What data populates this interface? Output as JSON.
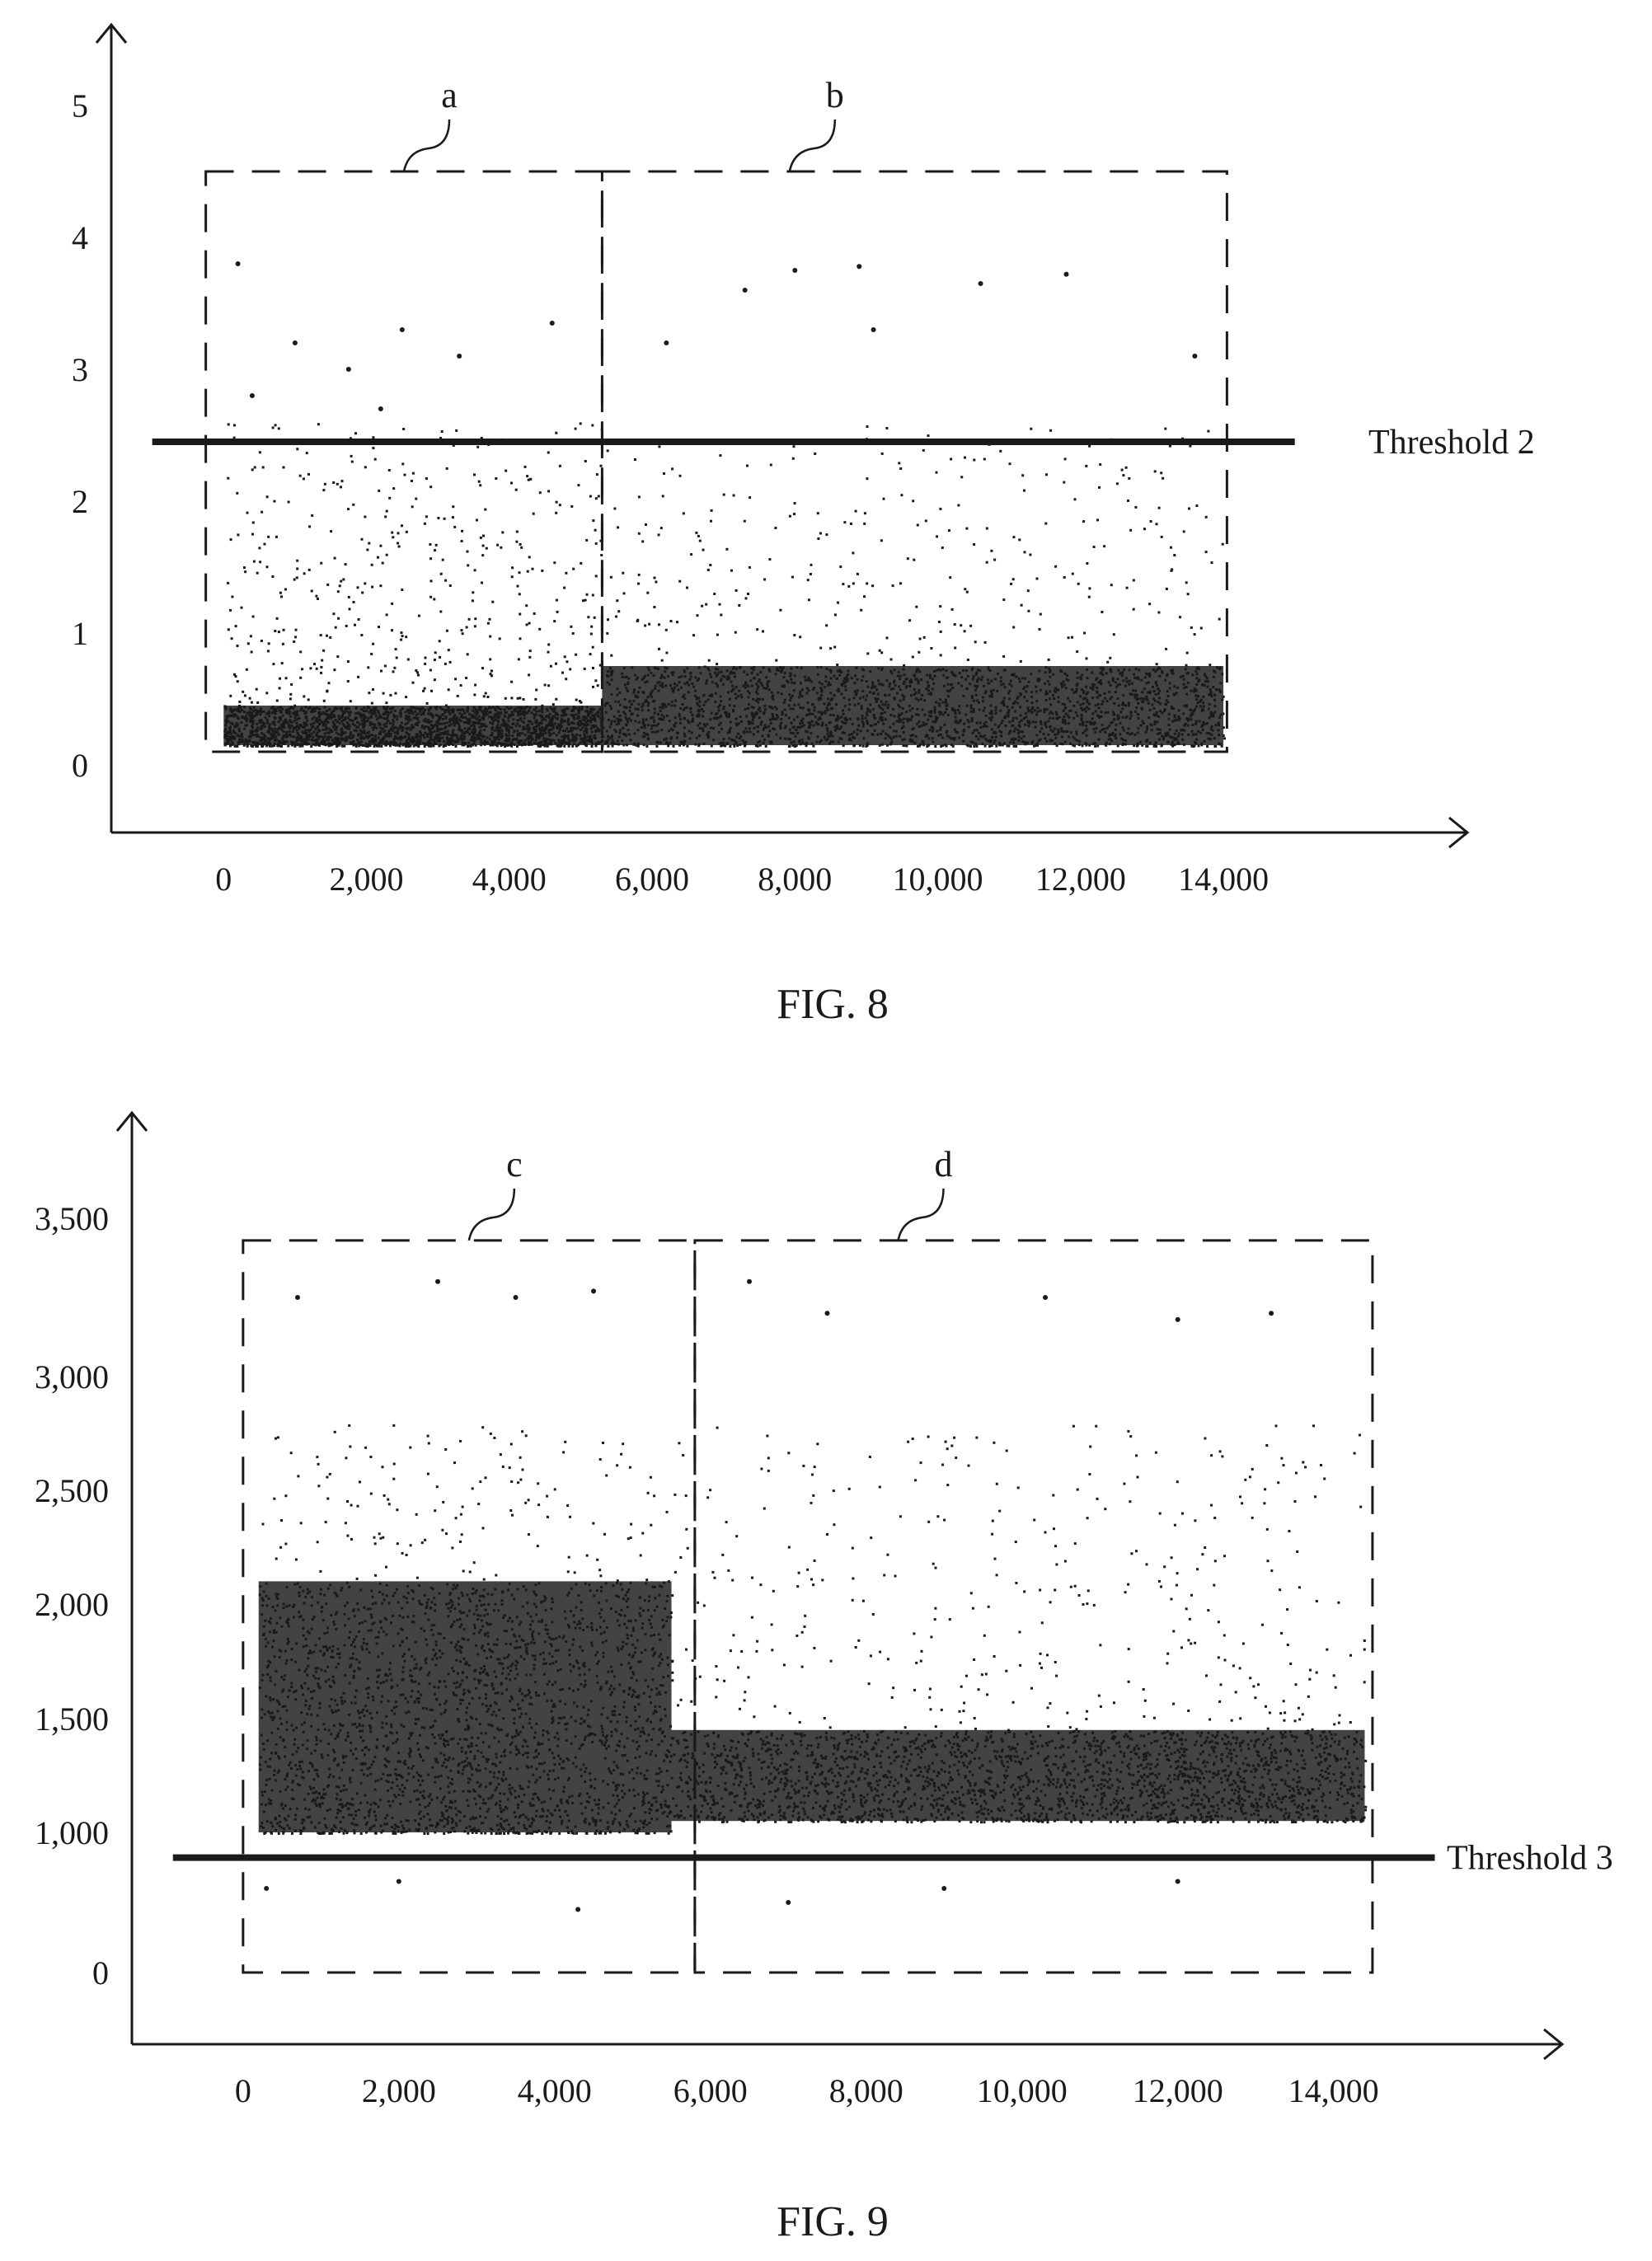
{
  "figures": [
    {
      "caption": "FIG. 8",
      "chart_data": {
        "type": "scatter",
        "x_ticks": [
          "0",
          "2,000",
          "4,000",
          "6,000",
          "8,000",
          "10,000",
          "12,000",
          "14,000"
        ],
        "y_ticks": [
          "0",
          "1",
          "2",
          "3",
          "4",
          "5"
        ],
        "xlim": [
          -1400,
          15800
        ],
        "ylim": [
          -0.5,
          5.6
        ],
        "threshold": {
          "label": "Threshold 2",
          "value": 2.45,
          "x_range": [
            -1000,
            15000
          ]
        },
        "regions": [
          {
            "label": "a",
            "x_range": [
              -250,
              5300
            ],
            "y_range": [
              0.1,
              4.5
            ]
          },
          {
            "label": "b",
            "x_range": [
              5300,
              14050
            ],
            "y_range": [
              0.1,
              4.5
            ]
          }
        ],
        "series": [
          {
            "x_range": [
              0,
              5300
            ],
            "dense_band": [
              0.15,
              0.45
            ],
            "points": [
              [
                200,
                3.8
              ],
              [
                1000,
                3.2
              ],
              [
                1750,
                3.0
              ],
              [
                2500,
                3.3
              ],
              [
                3300,
                3.1
              ],
              [
                4600,
                3.35
              ],
              [
                400,
                2.8
              ],
              [
                2200,
                2.7
              ]
            ]
          },
          {
            "x_range": [
              5300,
              14000
            ],
            "dense_band": [
              0.15,
              0.75
            ],
            "points": [
              [
                7300,
                3.6
              ],
              [
                8000,
                3.75
              ],
              [
                8900,
                3.78
              ],
              [
                10600,
                3.65
              ],
              [
                11800,
                3.72
              ],
              [
                6200,
                3.2
              ],
              [
                13600,
                3.1
              ],
              [
                9100,
                3.3
              ]
            ]
          }
        ],
        "grid": false
      }
    },
    {
      "caption": "FIG. 9",
      "chart_data": {
        "type": "scatter",
        "x_ticks": [
          "0",
          "2,000",
          "4,000",
          "6,000",
          "8,000",
          "10,000",
          "12,000",
          "14,000"
        ],
        "y_ticks": [
          "0",
          "1,000",
          "1,500",
          "2,000",
          "2,500",
          "3,000",
          "3,500"
        ],
        "xlim": [
          -1300,
          16300
        ],
        "y_tick_values": [
          0,
          1000,
          1500,
          2000,
          2500,
          3000,
          3500
        ],
        "threshold": {
          "label": "Threshold 3",
          "value": 820,
          "x_range": [
            -900,
            15300
          ]
        },
        "regions": [
          {
            "label": "c",
            "x_range": [
              0,
              5800
            ],
            "y_range": [
              0,
              3430
            ]
          },
          {
            "label": "d",
            "x_range": [
              5800,
              14500
            ],
            "y_range": [
              0,
              3430
            ]
          }
        ],
        "series": [
          {
            "x_range": [
              200,
              5500
            ],
            "dense_band": [
              1000,
              2100
            ],
            "points": [
              [
                700,
                3250
              ],
              [
                2500,
                3300
              ],
              [
                3500,
                3250
              ],
              [
                4500,
                3270
              ],
              [
                300,
                600
              ],
              [
                4300,
                450
              ],
              [
                2000,
                650
              ]
            ]
          },
          {
            "x_range": [
              5500,
              14400
            ],
            "dense_band": [
              1050,
              1450
            ],
            "points": [
              [
                6500,
                3300
              ],
              [
                7500,
                3200
              ],
              [
                10300,
                3250
              ],
              [
                12000,
                3180
              ],
              [
                13200,
                3200
              ],
              [
                7000,
                500
              ],
              [
                9000,
                600
              ],
              [
                12000,
                650
              ]
            ]
          }
        ],
        "grid": false
      }
    }
  ]
}
